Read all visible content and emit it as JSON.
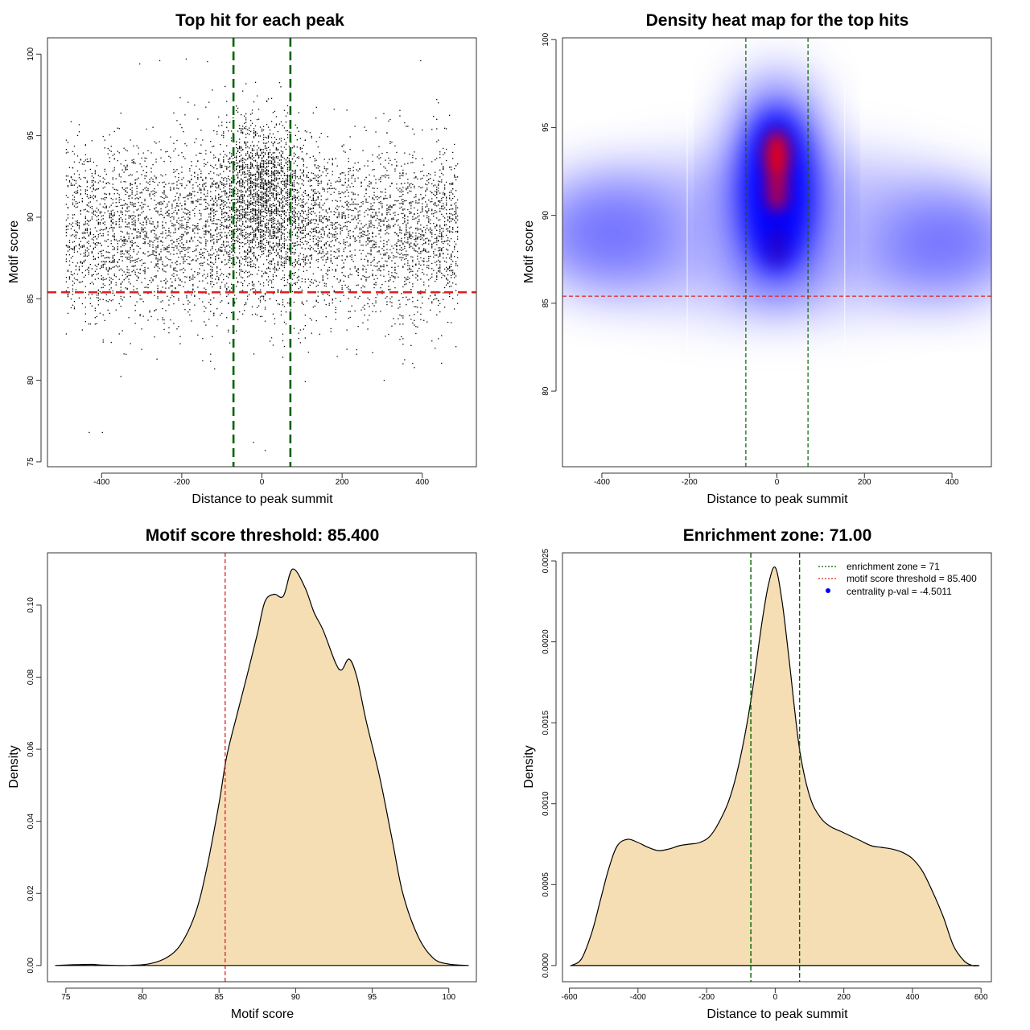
{
  "chart_data": [
    {
      "id": "scatter",
      "type": "scatter",
      "title": "Top hit for each peak",
      "xlabel": "Distance to peak summit",
      "ylabel": "Motif score",
      "xlim": [
        -535,
        535
      ],
      "ylim": [
        74.7,
        101
      ],
      "x_ticks": [
        -400,
        -200,
        0,
        200,
        400
      ],
      "y_ticks": [
        75,
        80,
        85,
        90,
        95,
        100
      ],
      "x_tick_labels": [
        "-400",
        "-200",
        "0",
        "200",
        "400"
      ],
      "y_tick_labels": [
        "75",
        "80",
        "85",
        "90",
        "95",
        "100"
      ],
      "enrichment_zone": 71,
      "score_threshold": 85.4,
      "point_count_approx": 11000,
      "point_color": "#000000",
      "zone_line_color": "#006400",
      "threshold_line_color": "#dd2222",
      "sample_points": [
        [
          -431,
          76.8
        ],
        [
          -398,
          76.8
        ],
        [
          -21,
          76.2
        ],
        [
          8,
          75.7
        ],
        [
          -118,
          80.7
        ],
        [
          305,
          80.0
        ],
        [
          -262,
          81.3
        ],
        [
          -339,
          81.6
        ],
        [
          342,
          84.9
        ],
        [
          -305,
          99.4
        ],
        [
          -255,
          99.6
        ],
        [
          396,
          99.6
        ],
        [
          -189,
          99.7
        ],
        [
          47,
          98.0
        ]
      ]
    },
    {
      "id": "heatmap",
      "type": "heatmap",
      "title": "Density heat map for the top hits",
      "xlabel": "Distance to peak summit",
      "ylabel": "Motif score",
      "xlim": [
        -490,
        490
      ],
      "ylim": [
        75.7,
        100.1
      ],
      "x_ticks": [
        -400,
        -200,
        0,
        200,
        400
      ],
      "y_ticks": [
        80,
        85,
        90,
        95,
        100
      ],
      "x_tick_labels": [
        "-400",
        "-200",
        "0",
        "200",
        "400"
      ],
      "y_tick_labels": [
        "80",
        "85",
        "90",
        "95",
        "100"
      ],
      "enrichment_zone": 71,
      "score_threshold": 85.4,
      "color_low": "#ffffff",
      "color_mid": "#0000ff",
      "color_high": "#ff0000",
      "density_peaks": [
        {
          "x": 0,
          "y": 93.4,
          "intensity": "high"
        },
        {
          "x": 0,
          "y": 91.4,
          "intensity": "high"
        },
        {
          "x": 0,
          "y": 88.2,
          "intensity": "medium"
        },
        {
          "x": -420,
          "y": 88.5,
          "intensity": "low"
        },
        {
          "x": 420,
          "y": 87.8,
          "intensity": "low"
        }
      ]
    },
    {
      "id": "score-density",
      "type": "area",
      "title": "Motif score threshold: 85.400",
      "xlabel": "Motif score",
      "ylabel": "Density",
      "xlim": [
        73.8,
        101.8
      ],
      "ylim": [
        -0.0045,
        0.1145
      ],
      "x_ticks": [
        75,
        80,
        85,
        90,
        95,
        100
      ],
      "y_ticks": [
        0.0,
        0.02,
        0.04,
        0.06,
        0.08,
        0.1
      ],
      "x_tick_labels": [
        "75",
        "80",
        "85",
        "90",
        "95",
        "100"
      ],
      "y_tick_labels": [
        "0.00",
        "0.02",
        "0.04",
        "0.06",
        "0.08",
        "0.10"
      ],
      "threshold": 85.4,
      "fill_color": "#f5deb3",
      "line_color": "#000000",
      "threshold_line_color": "#dd2222",
      "x": [
        74.3,
        75.5,
        76.7,
        77.5,
        79.0,
        80.5,
        81.7,
        82.6,
        83.5,
        84.2,
        85.0,
        85.5,
        86.2,
        86.8,
        87.5,
        88.0,
        88.6,
        89.2,
        89.8,
        90.6,
        91.2,
        91.8,
        92.6,
        93.0,
        93.5,
        94.0,
        94.6,
        95.5,
        96.3,
        97.0,
        98.0,
        99.0,
        100.0,
        101.3
      ],
      "y": [
        0.0,
        0.0002,
        0.0003,
        0.0001,
        0.0,
        0.0005,
        0.0025,
        0.0065,
        0.015,
        0.027,
        0.045,
        0.058,
        0.07,
        0.08,
        0.092,
        0.101,
        0.103,
        0.1025,
        0.11,
        0.105,
        0.098,
        0.093,
        0.084,
        0.082,
        0.085,
        0.08,
        0.068,
        0.052,
        0.035,
        0.02,
        0.008,
        0.002,
        0.0004,
        0.0
      ]
    },
    {
      "id": "distance-density",
      "type": "area",
      "title": "Enrichment zone: 71.00",
      "xlabel": "Distance to peak summit",
      "ylabel": "Density",
      "xlim": [
        -620,
        630
      ],
      "ylim": [
        -0.0001,
        0.00255
      ],
      "x_ticks": [
        -600,
        -400,
        -200,
        0,
        200,
        400,
        600
      ],
      "y_ticks": [
        0.0,
        0.0005,
        0.001,
        0.0015,
        0.002,
        0.0025
      ],
      "x_tick_labels": [
        "-600",
        "-400",
        "-200",
        "0",
        "200",
        "400",
        "600"
      ],
      "y_tick_labels": [
        "0.0000",
        "0.0005",
        "0.0010",
        "0.0015",
        "0.0020",
        "0.0025"
      ],
      "enrichment_zone": 71,
      "fill_color": "#f5deb3",
      "line_color": "#000000",
      "zone_line_color": "#006400",
      "x": [
        -595,
        -565,
        -535,
        -510,
        -485,
        -460,
        -430,
        -400,
        -370,
        -340,
        -310,
        -280,
        -250,
        -220,
        -190,
        -160,
        -130,
        -100,
        -70,
        -40,
        -20,
        0,
        20,
        40,
        70,
        100,
        130,
        160,
        190,
        220,
        250,
        280,
        310,
        340,
        370,
        400,
        430,
        460,
        490,
        520,
        550,
        575,
        595
      ],
      "y": [
        0.0,
        4e-05,
        0.0002,
        0.0004,
        0.0006,
        0.00074,
        0.00078,
        0.00076,
        0.00073,
        0.00071,
        0.00072,
        0.00074,
        0.00075,
        0.00076,
        0.0008,
        0.0009,
        0.00105,
        0.0013,
        0.00165,
        0.0021,
        0.00235,
        0.00246,
        0.00225,
        0.0019,
        0.00135,
        0.00105,
        0.00092,
        0.00086,
        0.00083,
        0.0008,
        0.00077,
        0.00074,
        0.00073,
        0.00072,
        0.0007,
        0.00066,
        0.00058,
        0.00045,
        0.0003,
        0.00012,
        3e-05,
        0.0,
        0.0
      ]
    }
  ],
  "legend": {
    "zone_label": "enrichment zone = 71",
    "threshold_label": "motif score threshold = 85.400",
    "pval_label": "centrality p-val = -4.5011",
    "zone_color": "#006400",
    "threshold_color": "#dd2222",
    "pval_color": "#0000ff"
  }
}
